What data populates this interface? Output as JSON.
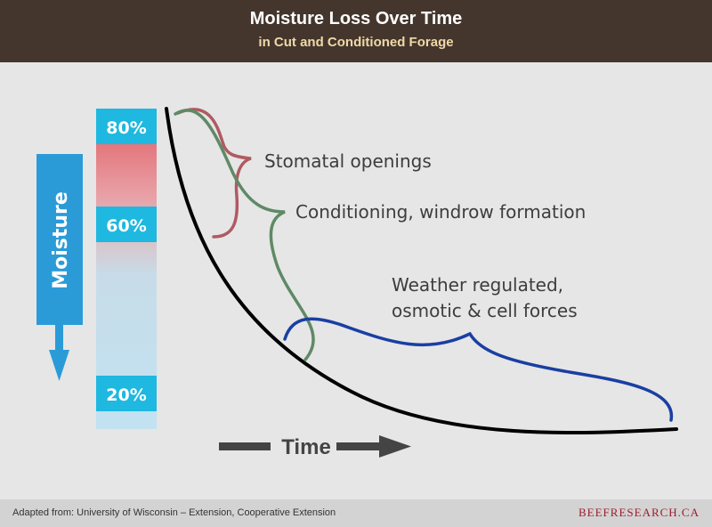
{
  "header": {
    "title": "Moisture Loss Over Time",
    "subtitle": "in Cut and Conditioned Forage"
  },
  "moisture_bar": {
    "axis_label": "Moisture",
    "markers": [
      "80%",
      "60%",
      "20%"
    ]
  },
  "curve_labels": {
    "stomatal": "Stomatal openings",
    "conditioning": "Conditioning, windrow formation",
    "weather_line1": "Weather regulated,",
    "weather_line2": "osmotic & cell forces"
  },
  "time_label": "Time",
  "footer": {
    "source": "Adapted from: University of Wisconsin – Extension, Cooperative Extension",
    "brand": "BEEFRESEARCH.CA"
  },
  "colors": {
    "header_bg": "#44362d",
    "stomatal": "#b05a62",
    "conditioning": "#5e8a66",
    "weather": "#1a3fa3",
    "moisture_blue": "#2b9bd8",
    "marker_cyan": "#1eb8e0"
  }
}
